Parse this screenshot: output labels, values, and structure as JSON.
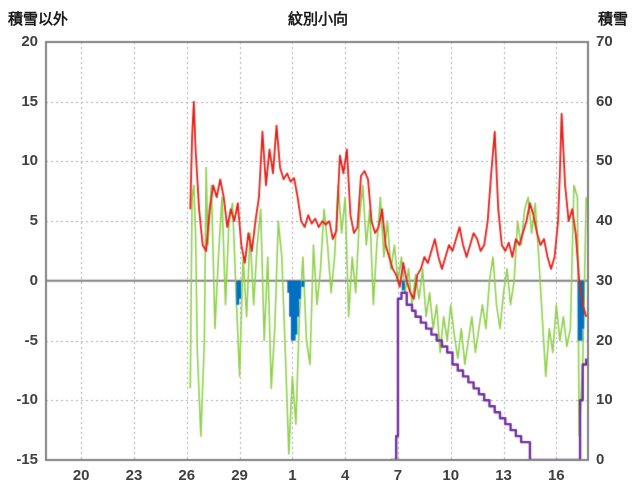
{
  "header": {
    "left_axis_title": "積雪以外",
    "chart_title": "紋別小向",
    "right_axis_title": "積雪"
  },
  "chart_data": {
    "type": "line",
    "title": "紋別小向",
    "grid": true,
    "legend_position": "none",
    "colors": {
      "red_series": "#e32119",
      "green_series": "#92d050",
      "blue_series": "#0070c0",
      "purple_series": "#7030a0",
      "grid_line": "#ababab",
      "axis_border": "#808080",
      "zero_line": "#808080",
      "tick_text": "#3f3f3f"
    },
    "left_axis": {
      "label": "積雪以外",
      "min": -15,
      "max": 20,
      "ticks": [
        "20",
        "15",
        "10",
        "5",
        "0",
        "-5",
        "-10",
        "-15"
      ],
      "tick_values": [
        20,
        15,
        10,
        5,
        0,
        -5,
        -10,
        -15
      ]
    },
    "right_axis": {
      "label": "積雪",
      "min": 0,
      "max": 70,
      "ticks": [
        "70",
        "60",
        "50",
        "40",
        "30",
        "20",
        "10",
        "0"
      ],
      "tick_values": [
        70,
        60,
        50,
        40,
        30,
        20,
        10,
        0
      ]
    },
    "x_axis": {
      "min": 0,
      "max": 30.8,
      "tick_labels": [
        "20",
        "23",
        "26",
        "29",
        "1",
        "4",
        "7",
        "10",
        "13",
        "16"
      ],
      "tick_positions": [
        2,
        5,
        8,
        11,
        14,
        17,
        20,
        23,
        26,
        29
      ]
    },
    "series": [
      {
        "name": "green-line",
        "axis": "left",
        "type": "line",
        "width": 1.6,
        "color": "#92d050",
        "points": [
          [
            8.2,
            -9
          ],
          [
            8.3,
            7
          ],
          [
            8.4,
            8
          ],
          [
            8.5,
            4
          ],
          [
            8.6,
            -6
          ],
          [
            8.8,
            -13
          ],
          [
            9.0,
            -5
          ],
          [
            9.1,
            9.5
          ],
          [
            9.2,
            3
          ],
          [
            9.4,
            8
          ],
          [
            9.6,
            -4
          ],
          [
            9.8,
            2
          ],
          [
            10.0,
            7
          ],
          [
            10.2,
            -2
          ],
          [
            10.4,
            5
          ],
          [
            10.6,
            6.5
          ],
          [
            10.8,
            -1
          ],
          [
            11.0,
            -8
          ],
          [
            11.2,
            2
          ],
          [
            11.4,
            -3
          ],
          [
            11.6,
            4
          ],
          [
            11.8,
            -2
          ],
          [
            12.0,
            3
          ],
          [
            12.2,
            6
          ],
          [
            12.4,
            -5
          ],
          [
            12.6,
            2
          ],
          [
            12.8,
            -9
          ],
          [
            13.0,
            -4
          ],
          [
            13.2,
            5
          ],
          [
            13.4,
            2
          ],
          [
            13.6,
            -6
          ],
          [
            13.8,
            -14.5
          ],
          [
            14.0,
            -8
          ],
          [
            14.2,
            -12
          ],
          [
            14.4,
            -3
          ],
          [
            14.6,
            2
          ],
          [
            14.8,
            -5
          ],
          [
            15.0,
            -7
          ],
          [
            15.2,
            3
          ],
          [
            15.4,
            -2
          ],
          [
            15.6,
            1
          ],
          [
            15.8,
            6
          ],
          [
            16.0,
            3
          ],
          [
            16.2,
            -1
          ],
          [
            16.4,
            2
          ],
          [
            16.6,
            8
          ],
          [
            16.8,
            4
          ],
          [
            17.0,
            7
          ],
          [
            17.2,
            -3
          ],
          [
            17.4,
            2
          ],
          [
            17.6,
            -1
          ],
          [
            17.8,
            5
          ],
          [
            18.0,
            8
          ],
          [
            18.2,
            3
          ],
          [
            18.4,
            6
          ],
          [
            18.6,
            -2
          ],
          [
            18.8,
            3
          ],
          [
            19.0,
            7
          ],
          [
            19.2,
            2
          ],
          [
            19.4,
            5
          ],
          [
            19.6,
            1
          ],
          [
            19.8,
            3
          ],
          [
            20.0,
            0
          ],
          [
            20.2,
            2
          ],
          [
            20.4,
            -1
          ],
          [
            20.6,
            1
          ],
          [
            20.8,
            -2
          ],
          [
            21.0,
            0.5
          ],
          [
            21.2,
            -1.5
          ],
          [
            21.4,
            1
          ],
          [
            21.6,
            -3
          ],
          [
            21.8,
            -1
          ],
          [
            22.0,
            -4
          ],
          [
            22.2,
            -2
          ],
          [
            22.4,
            -6
          ],
          [
            22.6,
            -3
          ],
          [
            22.8,
            -5
          ],
          [
            23.0,
            -2
          ],
          [
            23.2,
            -4.5
          ],
          [
            23.4,
            -6.5
          ],
          [
            23.6,
            -4
          ],
          [
            23.8,
            -7
          ],
          [
            24.0,
            -5
          ],
          [
            24.2,
            -3
          ],
          [
            24.4,
            -6
          ],
          [
            24.6,
            -4
          ],
          [
            24.8,
            -2
          ],
          [
            25.0,
            -4
          ],
          [
            25.2,
            0
          ],
          [
            25.4,
            2
          ],
          [
            25.6,
            -2
          ],
          [
            25.8,
            -4
          ],
          [
            26.0,
            -1
          ],
          [
            26.2,
            1
          ],
          [
            26.4,
            -2
          ],
          [
            26.6,
            0
          ],
          [
            26.8,
            5
          ],
          [
            27.0,
            3
          ],
          [
            27.2,
            6
          ],
          [
            27.4,
            7
          ],
          [
            27.6,
            4
          ],
          [
            27.8,
            6.5
          ],
          [
            28.0,
            2
          ],
          [
            28.2,
            -3
          ],
          [
            28.4,
            -8
          ],
          [
            28.6,
            -4
          ],
          [
            28.8,
            -6
          ],
          [
            29.0,
            -2
          ],
          [
            29.2,
            -5
          ],
          [
            29.4,
            -3
          ],
          [
            29.6,
            -5.5
          ],
          [
            29.8,
            -4
          ],
          [
            30.0,
            8
          ],
          [
            30.2,
            7
          ],
          [
            30.3,
            -13
          ],
          [
            30.5,
            -7
          ],
          [
            30.7,
            7
          ]
        ]
      },
      {
        "name": "blue-bars",
        "axis": "left",
        "type": "bar",
        "width": 3,
        "color": "#0070c0",
        "points": [
          [
            10.9,
            -2
          ],
          [
            11.0,
            -1.5
          ],
          [
            13.8,
            -1
          ],
          [
            13.9,
            -3
          ],
          [
            14.0,
            -5
          ],
          [
            14.1,
            -5
          ],
          [
            14.2,
            -4.5
          ],
          [
            14.3,
            -3
          ],
          [
            14.4,
            -1.5
          ],
          [
            14.6,
            -0.5
          ],
          [
            20.3,
            -0.8
          ],
          [
            30.3,
            -5
          ],
          [
            30.4,
            -5
          ],
          [
            30.5,
            -4
          ]
        ]
      },
      {
        "name": "red-line",
        "axis": "left",
        "type": "line",
        "width": 1.8,
        "color": "#e32119",
        "points": [
          [
            8.2,
            6
          ],
          [
            8.3,
            12
          ],
          [
            8.4,
            15
          ],
          [
            8.5,
            11
          ],
          [
            8.7,
            6
          ],
          [
            8.9,
            3
          ],
          [
            9.1,
            2.5
          ],
          [
            9.3,
            6
          ],
          [
            9.5,
            8
          ],
          [
            9.7,
            7
          ],
          [
            9.9,
            8.5
          ],
          [
            10.1,
            7
          ],
          [
            10.3,
            4.5
          ],
          [
            10.5,
            6
          ],
          [
            10.7,
            5
          ],
          [
            10.9,
            6.5
          ],
          [
            11.1,
            3
          ],
          [
            11.3,
            1.5
          ],
          [
            11.5,
            4
          ],
          [
            11.7,
            2.5
          ],
          [
            11.9,
            5
          ],
          [
            12.1,
            7
          ],
          [
            12.3,
            12.5
          ],
          [
            12.5,
            8
          ],
          [
            12.7,
            11
          ],
          [
            12.9,
            9
          ],
          [
            13.1,
            13
          ],
          [
            13.3,
            9.5
          ],
          [
            13.5,
            8.5
          ],
          [
            13.7,
            9
          ],
          [
            13.9,
            8.3
          ],
          [
            14.1,
            8.6
          ],
          [
            14.3,
            7
          ],
          [
            14.5,
            5
          ],
          [
            14.7,
            4.5
          ],
          [
            14.9,
            5.5
          ],
          [
            15.1,
            4.8
          ],
          [
            15.3,
            5.2
          ],
          [
            15.5,
            4.5
          ],
          [
            15.7,
            5
          ],
          [
            15.9,
            4.7
          ],
          [
            16.1,
            5
          ],
          [
            16.3,
            3.5
          ],
          [
            16.5,
            4.2
          ],
          [
            16.7,
            10.5
          ],
          [
            16.9,
            9
          ],
          [
            17.1,
            11
          ],
          [
            17.3,
            5.5
          ],
          [
            17.5,
            4
          ],
          [
            17.7,
            4.5
          ],
          [
            17.9,
            8.8
          ],
          [
            18.1,
            9.2
          ],
          [
            18.3,
            8.5
          ],
          [
            18.5,
            5
          ],
          [
            18.7,
            4
          ],
          [
            18.9,
            4.5
          ],
          [
            19.1,
            6
          ],
          [
            19.3,
            3
          ],
          [
            19.5,
            2
          ],
          [
            19.7,
            1
          ],
          [
            19.9,
            0.5
          ],
          [
            20.1,
            -0.5
          ],
          [
            20.3,
            1.5
          ],
          [
            20.5,
            0
          ],
          [
            20.7,
            -1
          ],
          [
            20.9,
            -1.5
          ],
          [
            21.1,
            0.5
          ],
          [
            21.3,
            1
          ],
          [
            21.5,
            2
          ],
          [
            21.7,
            1.5
          ],
          [
            21.9,
            2.5
          ],
          [
            22.1,
            3.5
          ],
          [
            22.3,
            2
          ],
          [
            22.5,
            1
          ],
          [
            22.7,
            2
          ],
          [
            22.9,
            3
          ],
          [
            23.1,
            2.5
          ],
          [
            23.3,
            3.5
          ],
          [
            23.5,
            4.5
          ],
          [
            23.7,
            3
          ],
          [
            23.9,
            2
          ],
          [
            24.1,
            3
          ],
          [
            24.3,
            4
          ],
          [
            24.5,
            3.5
          ],
          [
            24.7,
            2.5
          ],
          [
            24.9,
            3
          ],
          [
            25.1,
            5
          ],
          [
            25.3,
            9
          ],
          [
            25.5,
            12.5
          ],
          [
            25.7,
            6
          ],
          [
            25.9,
            3
          ],
          [
            26.1,
            2.5
          ],
          [
            26.3,
            3.2
          ],
          [
            26.5,
            2
          ],
          [
            26.7,
            3.5
          ],
          [
            26.9,
            3
          ],
          [
            27.1,
            4
          ],
          [
            27.3,
            5
          ],
          [
            27.5,
            6.5
          ],
          [
            27.7,
            5.5
          ],
          [
            27.9,
            4
          ],
          [
            28.1,
            3
          ],
          [
            28.3,
            3.5
          ],
          [
            28.5,
            2
          ],
          [
            28.7,
            1
          ],
          [
            28.9,
            2
          ],
          [
            29.1,
            5
          ],
          [
            29.2,
            9
          ],
          [
            29.3,
            14
          ],
          [
            29.5,
            8
          ],
          [
            29.7,
            5
          ],
          [
            29.9,
            6
          ],
          [
            30.1,
            4
          ],
          [
            30.3,
            0
          ],
          [
            30.5,
            -2
          ],
          [
            30.7,
            -3
          ]
        ]
      },
      {
        "name": "purple-line",
        "axis": "right",
        "type": "step",
        "width": 2.4,
        "color": "#7030a0",
        "points": [
          [
            19.6,
            0
          ],
          [
            19.9,
            4
          ],
          [
            20.0,
            27
          ],
          [
            20.2,
            28
          ],
          [
            20.5,
            26
          ],
          [
            20.8,
            25
          ],
          [
            21.0,
            24
          ],
          [
            21.3,
            23
          ],
          [
            21.6,
            22
          ],
          [
            21.9,
            21
          ],
          [
            22.2,
            20
          ],
          [
            22.5,
            19
          ],
          [
            22.8,
            18
          ],
          [
            23.1,
            16
          ],
          [
            23.4,
            15
          ],
          [
            23.7,
            14
          ],
          [
            24.0,
            13
          ],
          [
            24.3,
            12
          ],
          [
            24.6,
            11
          ],
          [
            24.9,
            10
          ],
          [
            25.2,
            9
          ],
          [
            25.5,
            8
          ],
          [
            25.8,
            7
          ],
          [
            26.1,
            6
          ],
          [
            26.4,
            5
          ],
          [
            26.7,
            4
          ],
          [
            27.0,
            3
          ],
          [
            27.3,
            3
          ],
          [
            27.5,
            0
          ],
          [
            28.5,
            0
          ],
          [
            29.5,
            0
          ],
          [
            30.1,
            0
          ],
          [
            30.25,
            0
          ],
          [
            30.35,
            10
          ],
          [
            30.5,
            16
          ],
          [
            30.7,
            17
          ]
        ]
      }
    ]
  }
}
